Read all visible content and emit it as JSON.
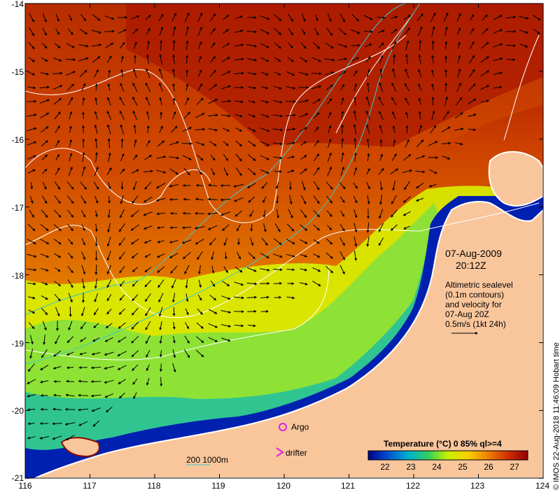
{
  "map": {
    "date": "07-Aug-2009",
    "time": "20:12Z",
    "legend_lines": [
      "Altimetric sealevel",
      "(0.1m contours)",
      "and velocity for",
      "07-Aug 20Z",
      "0.5m/s (1kt 24h)"
    ],
    "argo_label": "Argo",
    "drifter_label": "drifter",
    "depth_label": "200  1000m",
    "colorbar_title": "Temperature (°C) 0 85% ql>=4",
    "colorbar_ticks": [
      "22",
      "23",
      "24",
      "25",
      "26",
      "27"
    ],
    "credit": "© IMOS 22-Aug-2018 11:46:09 Hobart time",
    "lon_ticks": [
      "116",
      "117",
      "118",
      "119",
      "120",
      "121",
      "122",
      "123",
      "124"
    ],
    "lat_ticks": [
      "-14",
      "-15",
      "-16",
      "-17",
      "-18",
      "-19",
      "-20",
      "-21"
    ],
    "colors": {
      "land": "#f9c69c",
      "contour": "#ffffff",
      "isobath": "#40c8c8",
      "argo": "#e020e0",
      "colorbar": [
        "#00008c",
        "#0050d0",
        "#00b0d0",
        "#30d060",
        "#c8f000",
        "#f8d000",
        "#f08000",
        "#d03000",
        "#900000"
      ]
    }
  }
}
